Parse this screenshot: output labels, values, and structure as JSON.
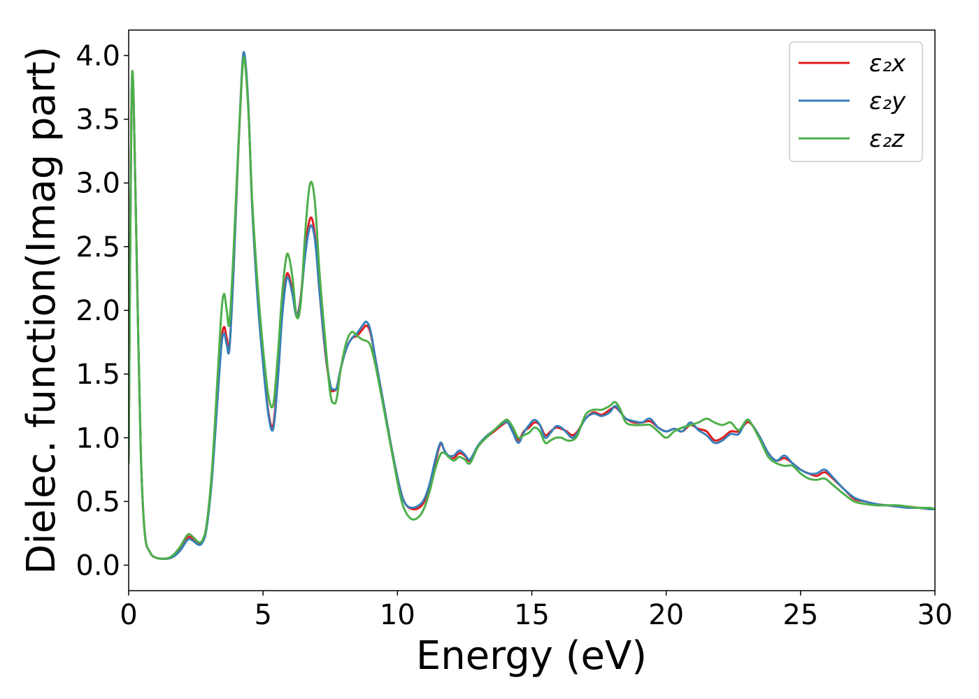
{
  "chart_data": {
    "type": "line",
    "xlabel": "Energy (eV)",
    "ylabel": "Dielec. function(Imag part)",
    "xlim": [
      0,
      30
    ],
    "ylim": [
      -0.2,
      4.2
    ],
    "xticks": [
      0,
      5,
      10,
      15,
      20,
      25,
      30
    ],
    "xtick_labels": [
      "0",
      "5",
      "10",
      "15",
      "20",
      "25",
      "30"
    ],
    "yticks": [
      0.0,
      0.5,
      1.0,
      1.5,
      2.0,
      2.5,
      3.0,
      3.5,
      4.0
    ],
    "ytick_labels": [
      "0.0",
      "0.5",
      "1.0",
      "1.5",
      "2.0",
      "2.5",
      "3.0",
      "3.5",
      "4.0"
    ],
    "grid": false,
    "legend_position": "top-right",
    "series": [
      {
        "name": "ε₂x",
        "color": "#e41a1c",
        "x": [
          0.0,
          0.1,
          0.18,
          0.3,
          0.45,
          0.6,
          0.8,
          1.0,
          1.3,
          1.6,
          1.9,
          2.2,
          2.4,
          2.6,
          2.75,
          2.9,
          3.1,
          3.3,
          3.45,
          3.55,
          3.65,
          3.75,
          3.9,
          4.05,
          4.2,
          4.3,
          4.45,
          4.6,
          4.8,
          5.0,
          5.2,
          5.38,
          5.55,
          5.7,
          5.85,
          5.95,
          6.1,
          6.25,
          6.4,
          6.55,
          6.7,
          6.82,
          6.95,
          7.1,
          7.3,
          7.5,
          7.65,
          7.75,
          7.9,
          8.1,
          8.3,
          8.5,
          8.7,
          8.85,
          9.0,
          9.2,
          9.5,
          9.8,
          10.1,
          10.3,
          10.55,
          10.8,
          11.0,
          11.2,
          11.4,
          11.6,
          11.75,
          11.9,
          12.1,
          12.3,
          12.5,
          12.7,
          13.0,
          13.3,
          13.6,
          13.9,
          14.1,
          14.3,
          14.5,
          14.7,
          14.9,
          15.1,
          15.3,
          15.5,
          15.7,
          15.9,
          16.1,
          16.3,
          16.5,
          16.7,
          17.0,
          17.3,
          17.6,
          17.9,
          18.1,
          18.3,
          18.5,
          18.8,
          19.1,
          19.4,
          19.7,
          20.0,
          20.3,
          20.6,
          20.9,
          21.2,
          21.5,
          21.8,
          22.1,
          22.4,
          22.7,
          23.0,
          23.2,
          23.5,
          23.8,
          24.1,
          24.4,
          24.7,
          25.0,
          25.3,
          25.6,
          25.9,
          26.2,
          26.6,
          27.0,
          27.4,
          27.8,
          28.2,
          28.6,
          29.0,
          29.4,
          29.8,
          30.0
        ],
        "y": [
          0.8,
          3.55,
          3.7,
          2.4,
          0.9,
          0.25,
          0.1,
          0.06,
          0.05,
          0.06,
          0.12,
          0.22,
          0.2,
          0.17,
          0.19,
          0.3,
          0.7,
          1.3,
          1.75,
          1.87,
          1.78,
          1.72,
          2.3,
          3.1,
          3.8,
          4.0,
          3.6,
          2.8,
          2.1,
          1.6,
          1.2,
          1.1,
          1.5,
          1.95,
          2.25,
          2.28,
          2.15,
          1.97,
          2.1,
          2.45,
          2.68,
          2.72,
          2.55,
          2.15,
          1.7,
          1.4,
          1.37,
          1.4,
          1.55,
          1.7,
          1.78,
          1.8,
          1.85,
          1.88,
          1.82,
          1.6,
          1.25,
          0.9,
          0.6,
          0.48,
          0.44,
          0.45,
          0.5,
          0.62,
          0.8,
          0.95,
          0.9,
          0.85,
          0.84,
          0.88,
          0.86,
          0.82,
          0.93,
          1.0,
          1.05,
          1.1,
          1.12,
          1.05,
          0.98,
          1.05,
          1.08,
          1.12,
          1.1,
          1.02,
          1.05,
          1.08,
          1.07,
          1.05,
          1.02,
          1.05,
          1.15,
          1.2,
          1.18,
          1.22,
          1.24,
          1.2,
          1.15,
          1.12,
          1.12,
          1.13,
          1.08,
          1.05,
          1.07,
          1.05,
          1.1,
          1.07,
          1.05,
          0.98,
          1.0,
          1.05,
          1.05,
          1.12,
          1.1,
          1.0,
          0.88,
          0.82,
          0.84,
          0.8,
          0.75,
          0.72,
          0.7,
          0.73,
          0.68,
          0.6,
          0.52,
          0.5,
          0.48,
          0.47,
          0.46,
          0.46,
          0.45,
          0.44,
          0.44
        ]
      },
      {
        "name": "ε₂y",
        "color": "#377eb8",
        "x": [
          0.0,
          0.1,
          0.18,
          0.3,
          0.45,
          0.6,
          0.8,
          1.0,
          1.3,
          1.6,
          1.9,
          2.2,
          2.4,
          2.6,
          2.75,
          2.9,
          3.1,
          3.3,
          3.45,
          3.55,
          3.65,
          3.75,
          3.9,
          4.05,
          4.2,
          4.3,
          4.45,
          4.6,
          4.8,
          5.0,
          5.2,
          5.38,
          5.55,
          5.7,
          5.85,
          5.95,
          6.1,
          6.25,
          6.4,
          6.55,
          6.7,
          6.82,
          6.95,
          7.1,
          7.3,
          7.5,
          7.65,
          7.75,
          7.9,
          8.1,
          8.3,
          8.5,
          8.7,
          8.85,
          9.0,
          9.2,
          9.5,
          9.8,
          10.1,
          10.3,
          10.55,
          10.8,
          11.0,
          11.2,
          11.4,
          11.6,
          11.75,
          11.9,
          12.1,
          12.3,
          12.5,
          12.7,
          13.0,
          13.3,
          13.6,
          13.9,
          14.1,
          14.3,
          14.5,
          14.7,
          14.9,
          15.1,
          15.3,
          15.5,
          15.7,
          15.9,
          16.1,
          16.3,
          16.5,
          16.7,
          17.0,
          17.3,
          17.6,
          17.9,
          18.1,
          18.3,
          18.5,
          18.8,
          19.1,
          19.4,
          19.7,
          20.0,
          20.3,
          20.6,
          20.9,
          21.2,
          21.5,
          21.8,
          22.1,
          22.4,
          22.7,
          23.0,
          23.2,
          23.5,
          23.8,
          24.1,
          24.4,
          24.7,
          25.0,
          25.3,
          25.6,
          25.9,
          26.2,
          26.6,
          27.0,
          27.4,
          27.8,
          28.2,
          28.6,
          29.0,
          29.4,
          29.8,
          30.0
        ],
        "y": [
          0.8,
          3.55,
          3.7,
          2.4,
          0.9,
          0.25,
          0.1,
          0.06,
          0.05,
          0.06,
          0.11,
          0.2,
          0.19,
          0.16,
          0.18,
          0.29,
          0.68,
          1.28,
          1.72,
          1.82,
          1.73,
          1.7,
          2.3,
          3.12,
          3.82,
          4.02,
          3.62,
          2.8,
          2.08,
          1.58,
          1.18,
          1.07,
          1.45,
          1.92,
          2.22,
          2.25,
          2.12,
          1.95,
          2.08,
          2.4,
          2.62,
          2.66,
          2.52,
          2.15,
          1.72,
          1.42,
          1.38,
          1.4,
          1.55,
          1.7,
          1.78,
          1.82,
          1.88,
          1.91,
          1.84,
          1.6,
          1.25,
          0.9,
          0.6,
          0.48,
          0.45,
          0.47,
          0.52,
          0.64,
          0.82,
          0.96,
          0.9,
          0.86,
          0.86,
          0.9,
          0.87,
          0.83,
          0.94,
          1.01,
          1.06,
          1.11,
          1.12,
          1.04,
          0.96,
          1.04,
          1.1,
          1.14,
          1.1,
          1.0,
          1.04,
          1.09,
          1.08,
          1.04,
          1.0,
          1.04,
          1.15,
          1.19,
          1.17,
          1.2,
          1.25,
          1.2,
          1.15,
          1.13,
          1.12,
          1.15,
          1.08,
          1.05,
          1.07,
          1.05,
          1.12,
          1.06,
          1.02,
          0.96,
          0.98,
          1.03,
          1.03,
          1.14,
          1.1,
          1.0,
          0.88,
          0.82,
          0.86,
          0.8,
          0.75,
          0.72,
          0.72,
          0.75,
          0.69,
          0.6,
          0.53,
          0.5,
          0.48,
          0.47,
          0.46,
          0.45,
          0.45,
          0.44,
          0.44
        ]
      },
      {
        "name": "ε₂z",
        "color": "#4daf4a",
        "x": [
          0.0,
          0.1,
          0.18,
          0.3,
          0.45,
          0.6,
          0.8,
          1.0,
          1.3,
          1.6,
          1.9,
          2.2,
          2.4,
          2.6,
          2.75,
          2.9,
          3.1,
          3.3,
          3.45,
          3.55,
          3.65,
          3.75,
          3.9,
          4.05,
          4.2,
          4.3,
          4.45,
          4.6,
          4.8,
          5.0,
          5.2,
          5.38,
          5.55,
          5.7,
          5.85,
          5.95,
          6.1,
          6.25,
          6.4,
          6.55,
          6.7,
          6.82,
          6.95,
          7.1,
          7.3,
          7.5,
          7.65,
          7.75,
          7.9,
          8.1,
          8.3,
          8.5,
          8.7,
          8.85,
          9.0,
          9.2,
          9.5,
          9.8,
          10.1,
          10.3,
          10.55,
          10.8,
          11.0,
          11.2,
          11.4,
          11.6,
          11.75,
          11.9,
          12.1,
          12.3,
          12.5,
          12.7,
          13.0,
          13.3,
          13.6,
          13.9,
          14.1,
          14.3,
          14.5,
          14.7,
          14.9,
          15.1,
          15.3,
          15.5,
          15.7,
          15.9,
          16.1,
          16.3,
          16.5,
          16.7,
          17.0,
          17.3,
          17.6,
          17.9,
          18.1,
          18.3,
          18.5,
          18.8,
          19.1,
          19.4,
          19.7,
          20.0,
          20.3,
          20.6,
          20.9,
          21.2,
          21.5,
          21.8,
          22.1,
          22.4,
          22.7,
          23.0,
          23.2,
          23.5,
          23.8,
          24.1,
          24.4,
          24.7,
          25.0,
          25.3,
          25.6,
          25.9,
          26.2,
          26.6,
          27.0,
          27.4,
          27.8,
          28.2,
          28.6,
          29.0,
          29.4,
          29.8,
          30.0
        ],
        "y": [
          0.8,
          3.55,
          3.7,
          2.4,
          0.9,
          0.25,
          0.1,
          0.06,
          0.05,
          0.07,
          0.14,
          0.24,
          0.22,
          0.18,
          0.2,
          0.32,
          0.75,
          1.45,
          1.98,
          2.13,
          2.0,
          1.9,
          2.45,
          3.15,
          3.78,
          3.98,
          3.58,
          2.85,
          2.2,
          1.7,
          1.33,
          1.26,
          1.65,
          2.1,
          2.4,
          2.43,
          2.25,
          1.95,
          2.05,
          2.55,
          2.93,
          3.0,
          2.8,
          2.3,
          1.8,
          1.35,
          1.27,
          1.32,
          1.55,
          1.75,
          1.83,
          1.8,
          1.77,
          1.76,
          1.72,
          1.55,
          1.22,
          0.88,
          0.55,
          0.42,
          0.36,
          0.38,
          0.45,
          0.58,
          0.75,
          0.87,
          0.88,
          0.85,
          0.82,
          0.85,
          0.83,
          0.8,
          0.93,
          1.0,
          1.06,
          1.12,
          1.14,
          1.08,
          1.0,
          1.02,
          1.04,
          1.08,
          1.05,
          0.96,
          0.98,
          1.0,
          1.0,
          0.98,
          0.98,
          1.02,
          1.18,
          1.22,
          1.22,
          1.25,
          1.28,
          1.22,
          1.12,
          1.1,
          1.1,
          1.1,
          1.05,
          1.0,
          1.05,
          1.08,
          1.1,
          1.12,
          1.15,
          1.12,
          1.1,
          1.12,
          1.06,
          1.14,
          1.1,
          0.98,
          0.85,
          0.8,
          0.78,
          0.78,
          0.72,
          0.68,
          0.67,
          0.68,
          0.63,
          0.56,
          0.5,
          0.48,
          0.47,
          0.47,
          0.47,
          0.46,
          0.45,
          0.45,
          0.44
        ]
      }
    ]
  }
}
